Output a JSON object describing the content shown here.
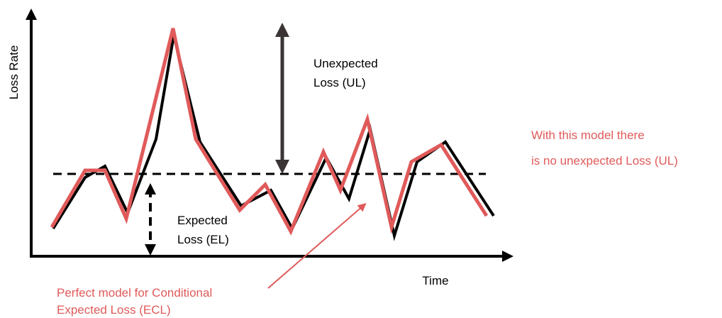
{
  "axes": {
    "y_label": "Loss Rate",
    "x_label": "Time"
  },
  "labels": {
    "unexpected_loss_line1": "Unexpected",
    "unexpected_loss_line2": "Loss (UL)",
    "expected_loss_line1": "Expected",
    "expected_loss_line2": "Loss (EL)",
    "model_note_line1": "With this model there",
    "model_note_line2": "is no unexpected Loss (UL)",
    "ecl_line1": "Perfect model for Conditional",
    "ecl_line2": "Expected Loss (ECL)"
  },
  "colors": {
    "actual_loss": "#000000",
    "ecl_model": "#e05a5a",
    "axis": "#000000",
    "ul_arrow": "#3a3434",
    "accent_text": "#e05a5a",
    "text": "#000000"
  }
}
